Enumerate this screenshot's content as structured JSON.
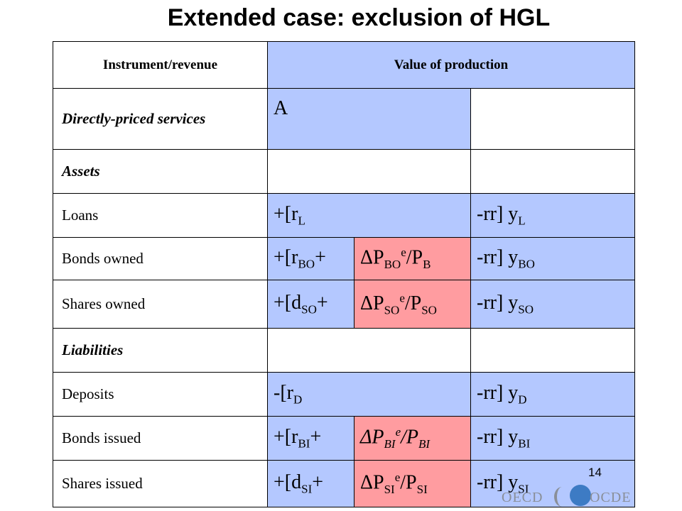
{
  "title": "Extended case: exclusion of HGL",
  "table": {
    "header": {
      "col1": "Instrument/revenue",
      "col2": "Value of production"
    },
    "rows": {
      "directly_priced": {
        "label": "Directly-priced services",
        "value": "A"
      },
      "assets": {
        "label": "Assets"
      },
      "loans": {
        "label": "Loans",
        "c2_main": "+[r",
        "c2_sub": "L",
        "c4_main": "-rr] y",
        "c4_sub": "L"
      },
      "bonds_owned": {
        "label": "Bonds owned",
        "c2_main": "+[r",
        "c2_sub": "BO",
        "c2_tail": "+",
        "c3_main": "ΔP",
        "c3_sub": "BO",
        "c3_sup": "e",
        "c3_div": "/P",
        "c3_sub2": "B",
        "c4_main": "-rr] y",
        "c4_sub": "BO"
      },
      "shares_owned": {
        "label": "Shares owned",
        "c2_main": "+[d",
        "c2_sub": "SO",
        "c2_tail": "+",
        "c3_main": "ΔP",
        "c3_sub": "SO",
        "c3_sup": "e",
        "c3_div": "/P",
        "c3_sub2": "SO",
        "c4_main": "-rr] y",
        "c4_sub": "SO"
      },
      "liabilities": {
        "label": "Liabilities"
      },
      "deposits": {
        "label": "Deposits",
        "c2_main": "-[r",
        "c2_sub": "D",
        "c4_main": "-rr] y",
        "c4_sub": "D"
      },
      "bonds_issued": {
        "label": "Bonds issued",
        "c2_main": "+[r",
        "c2_sub": "BI",
        "c2_tail": "+",
        "c3_main": "ΔP",
        "c3_sub": "BI",
        "c3_sup": "e",
        "c3_div": "/P",
        "c3_sub2": "BI",
        "c4_main": "-rr] y",
        "c4_sub": "BI"
      },
      "shares_issued": {
        "label": "Shares issued",
        "c2_main": "+[d",
        "c2_sub": "SI",
        "c2_tail": "+",
        "c3_main": "ΔP",
        "c3_sub": "SI",
        "c3_sup": "e",
        "c3_div": "/P",
        "c3_sub2": "SI",
        "c4_main": "-rr] y",
        "c4_sub": "SI"
      }
    }
  },
  "page_number": "14",
  "logo": {
    "left_text": "OECD",
    "right_text": "OCDE"
  }
}
